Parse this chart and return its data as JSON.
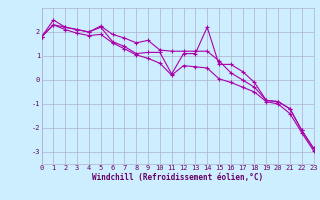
{
  "xlabel": "Windchill (Refroidissement éolien,°C)",
  "ylabel": "",
  "background_color": "#cceeff",
  "grid_color": "#b0b0cc",
  "line_color": "#aa00aa",
  "x_values": [
    0,
    1,
    2,
    3,
    4,
    5,
    6,
    7,
    8,
    9,
    10,
    11,
    12,
    13,
    14,
    15,
    16,
    17,
    18,
    19,
    20,
    21,
    22,
    23
  ],
  "y_main": [
    1.8,
    2.3,
    2.2,
    2.1,
    2.0,
    2.2,
    1.6,
    1.4,
    1.1,
    1.15,
    1.15,
    0.25,
    1.1,
    1.1,
    2.2,
    0.65,
    0.65,
    0.35,
    -0.1,
    -0.85,
    -0.9,
    -1.2,
    -2.1,
    -2.85
  ],
  "y_upper": [
    1.8,
    2.5,
    2.2,
    2.1,
    2.0,
    2.25,
    1.9,
    1.75,
    1.55,
    1.65,
    1.25,
    1.2,
    1.2,
    1.2,
    1.2,
    0.8,
    0.3,
    0.0,
    -0.3,
    -0.85,
    -0.9,
    -1.2,
    -2.1,
    -2.85
  ],
  "y_lower": [
    1.8,
    2.3,
    2.1,
    1.95,
    1.85,
    1.9,
    1.55,
    1.3,
    1.05,
    0.9,
    0.7,
    0.2,
    0.6,
    0.55,
    0.5,
    0.05,
    -0.1,
    -0.3,
    -0.5,
    -0.9,
    -1.0,
    -1.4,
    -2.2,
    -2.95
  ],
  "ylim": [
    -3.5,
    3.0
  ],
  "xlim": [
    0,
    23
  ],
  "yticks": [
    -3,
    -2,
    -1,
    0,
    1,
    2
  ],
  "xticks": [
    0,
    1,
    2,
    3,
    4,
    5,
    6,
    7,
    8,
    9,
    10,
    11,
    12,
    13,
    14,
    15,
    16,
    17,
    18,
    19,
    20,
    21,
    22,
    23
  ],
  "title_color": "#660066",
  "xlabel_color": "#660066",
  "tick_color": "#660066",
  "fontsize_xlabel": 5.5,
  "fontsize_ticks": 5.0
}
